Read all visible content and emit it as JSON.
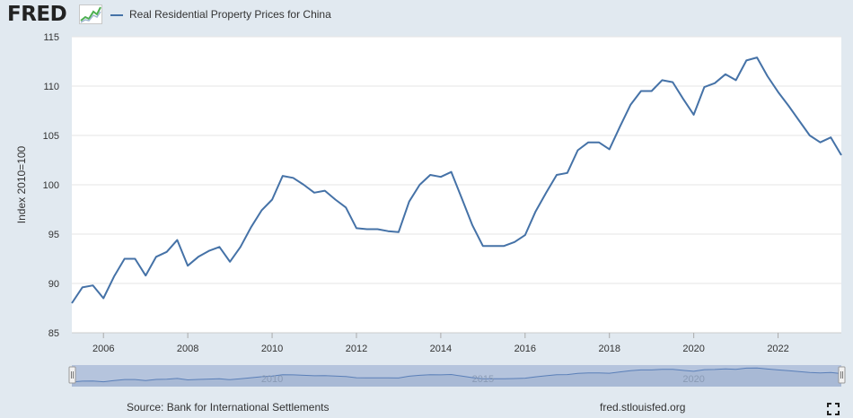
{
  "header": {
    "logo_text": "FRED",
    "legend_label": "Real Residential Property Prices for China"
  },
  "colors": {
    "series": "#4572a7",
    "page_background": "#e1e9f0",
    "plot_background": "#ffffff",
    "navigator_fill": "#a6b8d4",
    "navigator_line": "#5a7fb8"
  },
  "footer": {
    "source": "Source: Bank for International Settlements",
    "url": "fred.stlouisfed.org"
  },
  "icons": {
    "logo": "fred-chart-icon",
    "fullscreen": "fullscreen-icon"
  },
  "navigator": {
    "labels": [
      "2010",
      "2015",
      "2020"
    ]
  },
  "chart_data": {
    "type": "line",
    "title": "",
    "xlabel": "",
    "ylabel": "Index 2010=100",
    "xlim": [
      2005.25,
      2023.5
    ],
    "ylim": [
      85,
      115
    ],
    "yticks": [
      85,
      90,
      95,
      100,
      105,
      110,
      115
    ],
    "xticks": [
      "2006",
      "2008",
      "2010",
      "2012",
      "2014",
      "2016",
      "2018",
      "2020",
      "2022"
    ],
    "grid": true,
    "legend": "top-left",
    "series": [
      {
        "name": "Real Residential Property Prices for China",
        "x": [
          "2005 Q2",
          "2005 Q3",
          "2005 Q4",
          "2006 Q1",
          "2006 Q2",
          "2006 Q3",
          "2006 Q4",
          "2007 Q1",
          "2007 Q2",
          "2007 Q3",
          "2007 Q4",
          "2008 Q1",
          "2008 Q2",
          "2008 Q3",
          "2008 Q4",
          "2009 Q1",
          "2009 Q2",
          "2009 Q3",
          "2009 Q4",
          "2010 Q1",
          "2010 Q2",
          "2010 Q3",
          "2010 Q4",
          "2011 Q1",
          "2011 Q2",
          "2011 Q3",
          "2011 Q4",
          "2012 Q1",
          "2012 Q2",
          "2012 Q3",
          "2012 Q4",
          "2013 Q1",
          "2013 Q2",
          "2013 Q3",
          "2013 Q4",
          "2014 Q1",
          "2014 Q2",
          "2014 Q3",
          "2014 Q4",
          "2015 Q1",
          "2015 Q2",
          "2015 Q3",
          "2015 Q4",
          "2016 Q1",
          "2016 Q2",
          "2016 Q3",
          "2016 Q4",
          "2017 Q1",
          "2017 Q2",
          "2017 Q3",
          "2017 Q4",
          "2018 Q1",
          "2018 Q2",
          "2018 Q3",
          "2018 Q4",
          "2019 Q1",
          "2019 Q2",
          "2019 Q3",
          "2019 Q4",
          "2020 Q1",
          "2020 Q2",
          "2020 Q3",
          "2020 Q4",
          "2021 Q1",
          "2021 Q2",
          "2021 Q3",
          "2021 Q4",
          "2022 Q1",
          "2022 Q2",
          "2022 Q3",
          "2022 Q4",
          "2023 Q1",
          "2023 Q2",
          "2023 Q3"
        ],
        "values": [
          88.0,
          89.6,
          89.8,
          88.5,
          90.7,
          92.5,
          92.5,
          90.8,
          92.7,
          93.2,
          94.4,
          91.8,
          92.7,
          93.3,
          93.7,
          92.2,
          93.7,
          95.7,
          97.4,
          98.5,
          100.9,
          100.7,
          100.0,
          99.2,
          99.4,
          98.5,
          97.7,
          95.6,
          95.5,
          95.5,
          95.3,
          95.2,
          98.3,
          100.0,
          101.0,
          100.8,
          101.3,
          98.6,
          95.9,
          93.8,
          93.8,
          93.8,
          94.2,
          94.9,
          97.3,
          99.2,
          101.0,
          101.2,
          103.5,
          104.3,
          104.3,
          103.6,
          105.9,
          108.1,
          109.5,
          109.5,
          110.6,
          110.4,
          108.7,
          107.1,
          109.9,
          110.3,
          111.2,
          110.6,
          112.6,
          112.9,
          111.0,
          109.4,
          108.0,
          106.5,
          105.0,
          104.3,
          104.8,
          103.0
        ]
      }
    ]
  }
}
